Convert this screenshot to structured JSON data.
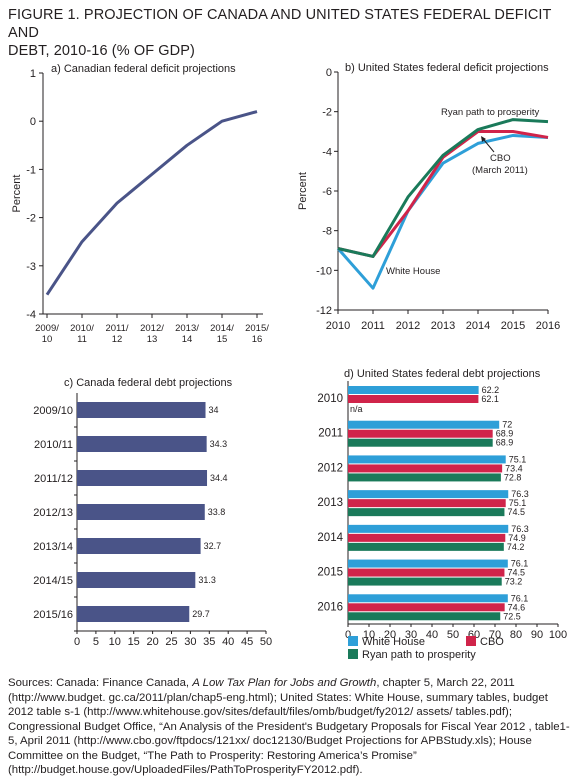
{
  "figure": {
    "title_line1": "FIGURE 1. PROJECTION OF CANADA AND UNITED STATES FEDERAL DEFICIT AND",
    "title_line2": "DEBT, 2010-16 (% OF GDP)"
  },
  "colors": {
    "canada_series": "#4a5488",
    "white_house": "#2e9fd8",
    "cbo": "#d0244a",
    "ryan": "#1a7a5a",
    "axis": "#231f20"
  },
  "chart_data": [
    {
      "id": "a",
      "type": "line",
      "title": "a) Canadian federal deficit projections",
      "xlabel": "",
      "ylabel": "Percent",
      "categories": [
        [
          "2009/",
          "10"
        ],
        [
          "2010/",
          "11"
        ],
        [
          "2011/",
          "12"
        ],
        [
          "2012/",
          "13"
        ],
        [
          "2013/",
          "14"
        ],
        [
          "2014/",
          "15"
        ],
        [
          "2015/",
          "16"
        ]
      ],
      "y_ticks": [
        1,
        0,
        -1,
        -2,
        -3,
        -4
      ],
      "ylim": [
        -4,
        1
      ],
      "series": [
        {
          "values": [
            -3.6,
            -2.5,
            -1.7,
            -1.1,
            -0.5,
            0.0,
            0.2
          ]
        }
      ],
      "grid": false
    },
    {
      "id": "b",
      "type": "line",
      "title": "b) United States federal deficit projections",
      "xlabel": "",
      "ylabel": "Percent",
      "x": [
        2010,
        2011,
        2012,
        2013,
        2014,
        2015,
        2016
      ],
      "y_ticks": [
        0,
        -2,
        -4,
        -6,
        -8,
        -10,
        -12
      ],
      "ylim": [
        -12,
        0
      ],
      "series": [
        {
          "name": "White House",
          "values": [
            -8.9,
            -10.9,
            -7.0,
            -4.6,
            -3.6,
            -3.2,
            -3.3
          ]
        },
        {
          "name": "CBO (March 2011)",
          "values": [
            -8.9,
            -9.3,
            -7.0,
            -4.3,
            -3.0,
            -3.0,
            -3.3
          ]
        },
        {
          "name": "Ryan path to prosperity",
          "values": [
            -8.9,
            -9.3,
            -6.3,
            -4.2,
            -2.9,
            -2.4,
            -2.5
          ]
        }
      ],
      "annotations": [
        "Ryan path to prosperity",
        "CBO",
        "(March 2011)",
        "White House"
      ],
      "grid": false
    },
    {
      "id": "c",
      "type": "bar",
      "orientation": "horizontal",
      "title": "c) Canada federal debt projections",
      "categories": [
        "2009/10",
        "2010/11",
        "2011/12",
        "2012/13",
        "2013/14",
        "2014/15",
        "2015/16"
      ],
      "values": [
        34,
        34.3,
        34.4,
        33.8,
        32.7,
        31.3,
        29.7
      ],
      "x_ticks": [
        0,
        5,
        10,
        15,
        20,
        25,
        30,
        35,
        40,
        45,
        50
      ],
      "xlim": [
        0,
        50
      ],
      "grid": false
    },
    {
      "id": "d",
      "type": "bar",
      "orientation": "horizontal",
      "title": "d) United States federal debt projections",
      "categories": [
        "2010",
        "2011",
        "2012",
        "2013",
        "2014",
        "2015",
        "2016"
      ],
      "series": [
        {
          "name": "White House",
          "values": [
            62.2,
            72,
            75.1,
            76.3,
            76.3,
            76.1,
            76.1
          ]
        },
        {
          "name": "CBO",
          "values": [
            62.1,
            68.9,
            73.4,
            75.1,
            74.9,
            74.5,
            74.6
          ]
        },
        {
          "name": "Ryan path to prosperity",
          "values": [
            null,
            68.9,
            72.8,
            74.5,
            74.2,
            73.2,
            72.5
          ]
        }
      ],
      "labels": [
        [
          "62.2",
          "62.1",
          "n/a"
        ],
        [
          "72",
          "68.9",
          "68.9"
        ],
        [
          "75.1",
          "73.4",
          "72.8"
        ],
        [
          "76.3",
          "75.1",
          "74.5"
        ],
        [
          "76.3",
          "74.9",
          "74.2"
        ],
        [
          "76.1",
          "74.5",
          "73.2"
        ],
        [
          "76.1",
          "74.6",
          "72.5"
        ]
      ],
      "x_ticks": [
        0,
        10,
        20,
        30,
        40,
        50,
        60,
        70,
        80,
        90,
        100
      ],
      "xlim": [
        0,
        100
      ],
      "legend": {
        "position": "bottom",
        "entries": [
          "White House",
          "CBO",
          "Ryan path to prosperity"
        ]
      },
      "grid": false
    }
  ],
  "sources": {
    "part1": "Sources: Canada: Finance Canada, ",
    "book": "A Low Tax Plan for Jobs and Growth",
    "part2": ", chapter 5, March 22, 2011 (http://www.budget. gc.ca/2011/plan/chap5-eng.html); United States: White House, summary tables, budget 2012 table s-1 (http://www.whitehouse.gov/sites/default/files/omb/budget/fy2012/ assets/ tables.pdf); Congressional Budget Office, “An Analysis of the President's Budgetary Proposals for Fiscal Year 2012 , table1-5, April 2011 (http://www.cbo.gov/ftpdocs/121xx/ doc12130/Budget Projections for APBStudy.xls); House Committee on the Budget, “The Path to Prosperity: Restoring America’s Promise” (http://budget.house.gov/UploadedFiles/PathToProsperityFY2012.pdf)."
  }
}
